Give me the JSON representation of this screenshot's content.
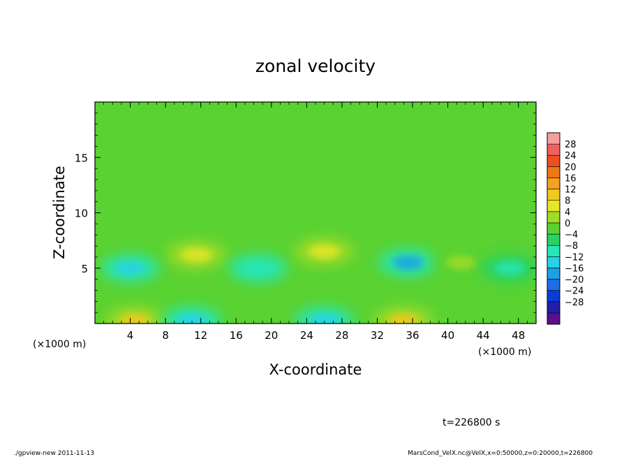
{
  "chart_data": {
    "type": "heatmap",
    "title": "zonal velocity",
    "xlabel": "X-coordinate",
    "ylabel": "Z-coordinate",
    "x_unit_left": "(×1000 m)",
    "x_unit_right": "(×1000 m)",
    "xlim": [
      0,
      50
    ],
    "ylim": [
      0,
      20
    ],
    "x_ticks": [
      4,
      8,
      12,
      16,
      20,
      24,
      28,
      32,
      36,
      40,
      44,
      48
    ],
    "y_ticks": [
      5,
      10,
      15
    ],
    "colorbar": {
      "levels": [
        -32,
        -28,
        -24,
        -20,
        -16,
        -12,
        -8,
        -4,
        0,
        4,
        8,
        12,
        16,
        20,
        24,
        28,
        32
      ],
      "labels": [
        "28",
        "24",
        "20",
        "16",
        "12",
        "8",
        "4",
        "0",
        "-4",
        "-8",
        "-12",
        "-16",
        "-20",
        "-24",
        "-28"
      ],
      "colors": [
        "#5a0f8c",
        "#2020a8",
        "#0a3cd8",
        "#1e6ee6",
        "#1ea0e6",
        "#28d2e6",
        "#28e6b4",
        "#28d264",
        "#5ad232",
        "#a0dc28",
        "#e6e628",
        "#f0c81e",
        "#f5a01e",
        "#f07814",
        "#eb501e",
        "#f06060",
        "#f5a0a0"
      ]
    },
    "features": [
      {
        "x": 4.5,
        "z": 0.3,
        "value": 12
      },
      {
        "x": 11,
        "z": 0.3,
        "value": -10
      },
      {
        "x": 26,
        "z": 0.3,
        "value": -10
      },
      {
        "x": 35,
        "z": 0.3,
        "value": 14
      },
      {
        "x": 4,
        "z": 5,
        "value": -10
      },
      {
        "x": 11.5,
        "z": 6.2,
        "value": 8
      },
      {
        "x": 18.5,
        "z": 5,
        "value": -8
      },
      {
        "x": 26,
        "z": 6.5,
        "value": 8
      },
      {
        "x": 35.5,
        "z": 5.5,
        "value": -14
      },
      {
        "x": 41.5,
        "z": 5.5,
        "value": 6
      },
      {
        "x": 47,
        "z": 5,
        "value": -6
      }
    ]
  },
  "footer": {
    "time": "t=226800 s",
    "program": "./gpview-new  2011-11-13",
    "source": "MarsCond_VelX.nc@VelX,x=0:50000,z=0:20000,t=226800"
  }
}
